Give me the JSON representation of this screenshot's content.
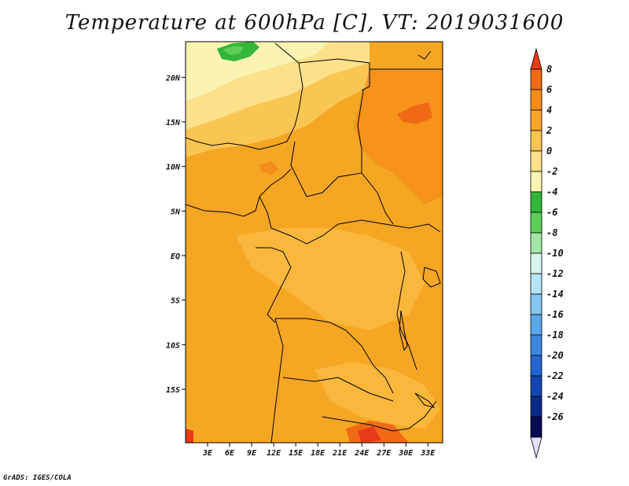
{
  "title": "Temperature at 600hPa [C], VT: 2019031600",
  "credit": "GrADS: IGES/COLA",
  "map": {
    "projection": "latlon",
    "lon_range_deg_east": [
      0,
      35
    ],
    "lat_range_deg_north": [
      -21,
      24
    ],
    "x_ticks": [
      "3E",
      "6E",
      "9E",
      "12E",
      "15E",
      "18E",
      "21E",
      "24E",
      "27E",
      "30E",
      "33E"
    ],
    "x_tick_values": [
      3,
      6,
      9,
      12,
      15,
      18,
      21,
      24,
      27,
      30,
      33
    ],
    "y_ticks": [
      "20N",
      "15N",
      "10N",
      "5N",
      "EQ",
      "5S",
      "10S",
      "15S"
    ],
    "y_tick_values": [
      20,
      15,
      10,
      5,
      0,
      -5,
      -10,
      -15
    ],
    "base_field_color": "#f5a623"
  },
  "colorbar": {
    "labels": [
      "8",
      "6",
      "4",
      "2",
      "0",
      "-2",
      "-4",
      "-6",
      "-8",
      "-10",
      "-12",
      "-14",
      "-16",
      "-18",
      "-20",
      "-22",
      "-24",
      "-26"
    ],
    "colors": [
      "#e83a18",
      "#f06a16",
      "#f48c1a",
      "#f7a52c",
      "#fbc552",
      "#fde08a",
      "#fbf3b2",
      "#33b63a",
      "#5ece59",
      "#a4e6a4",
      "#d6f5ee",
      "#b6e4f6",
      "#86c6f0",
      "#5aa6e8",
      "#3d86dc",
      "#2366d0",
      "#1546b0",
      "#0a2a8a",
      "#060a55",
      "#e0e0f8"
    ]
  }
}
